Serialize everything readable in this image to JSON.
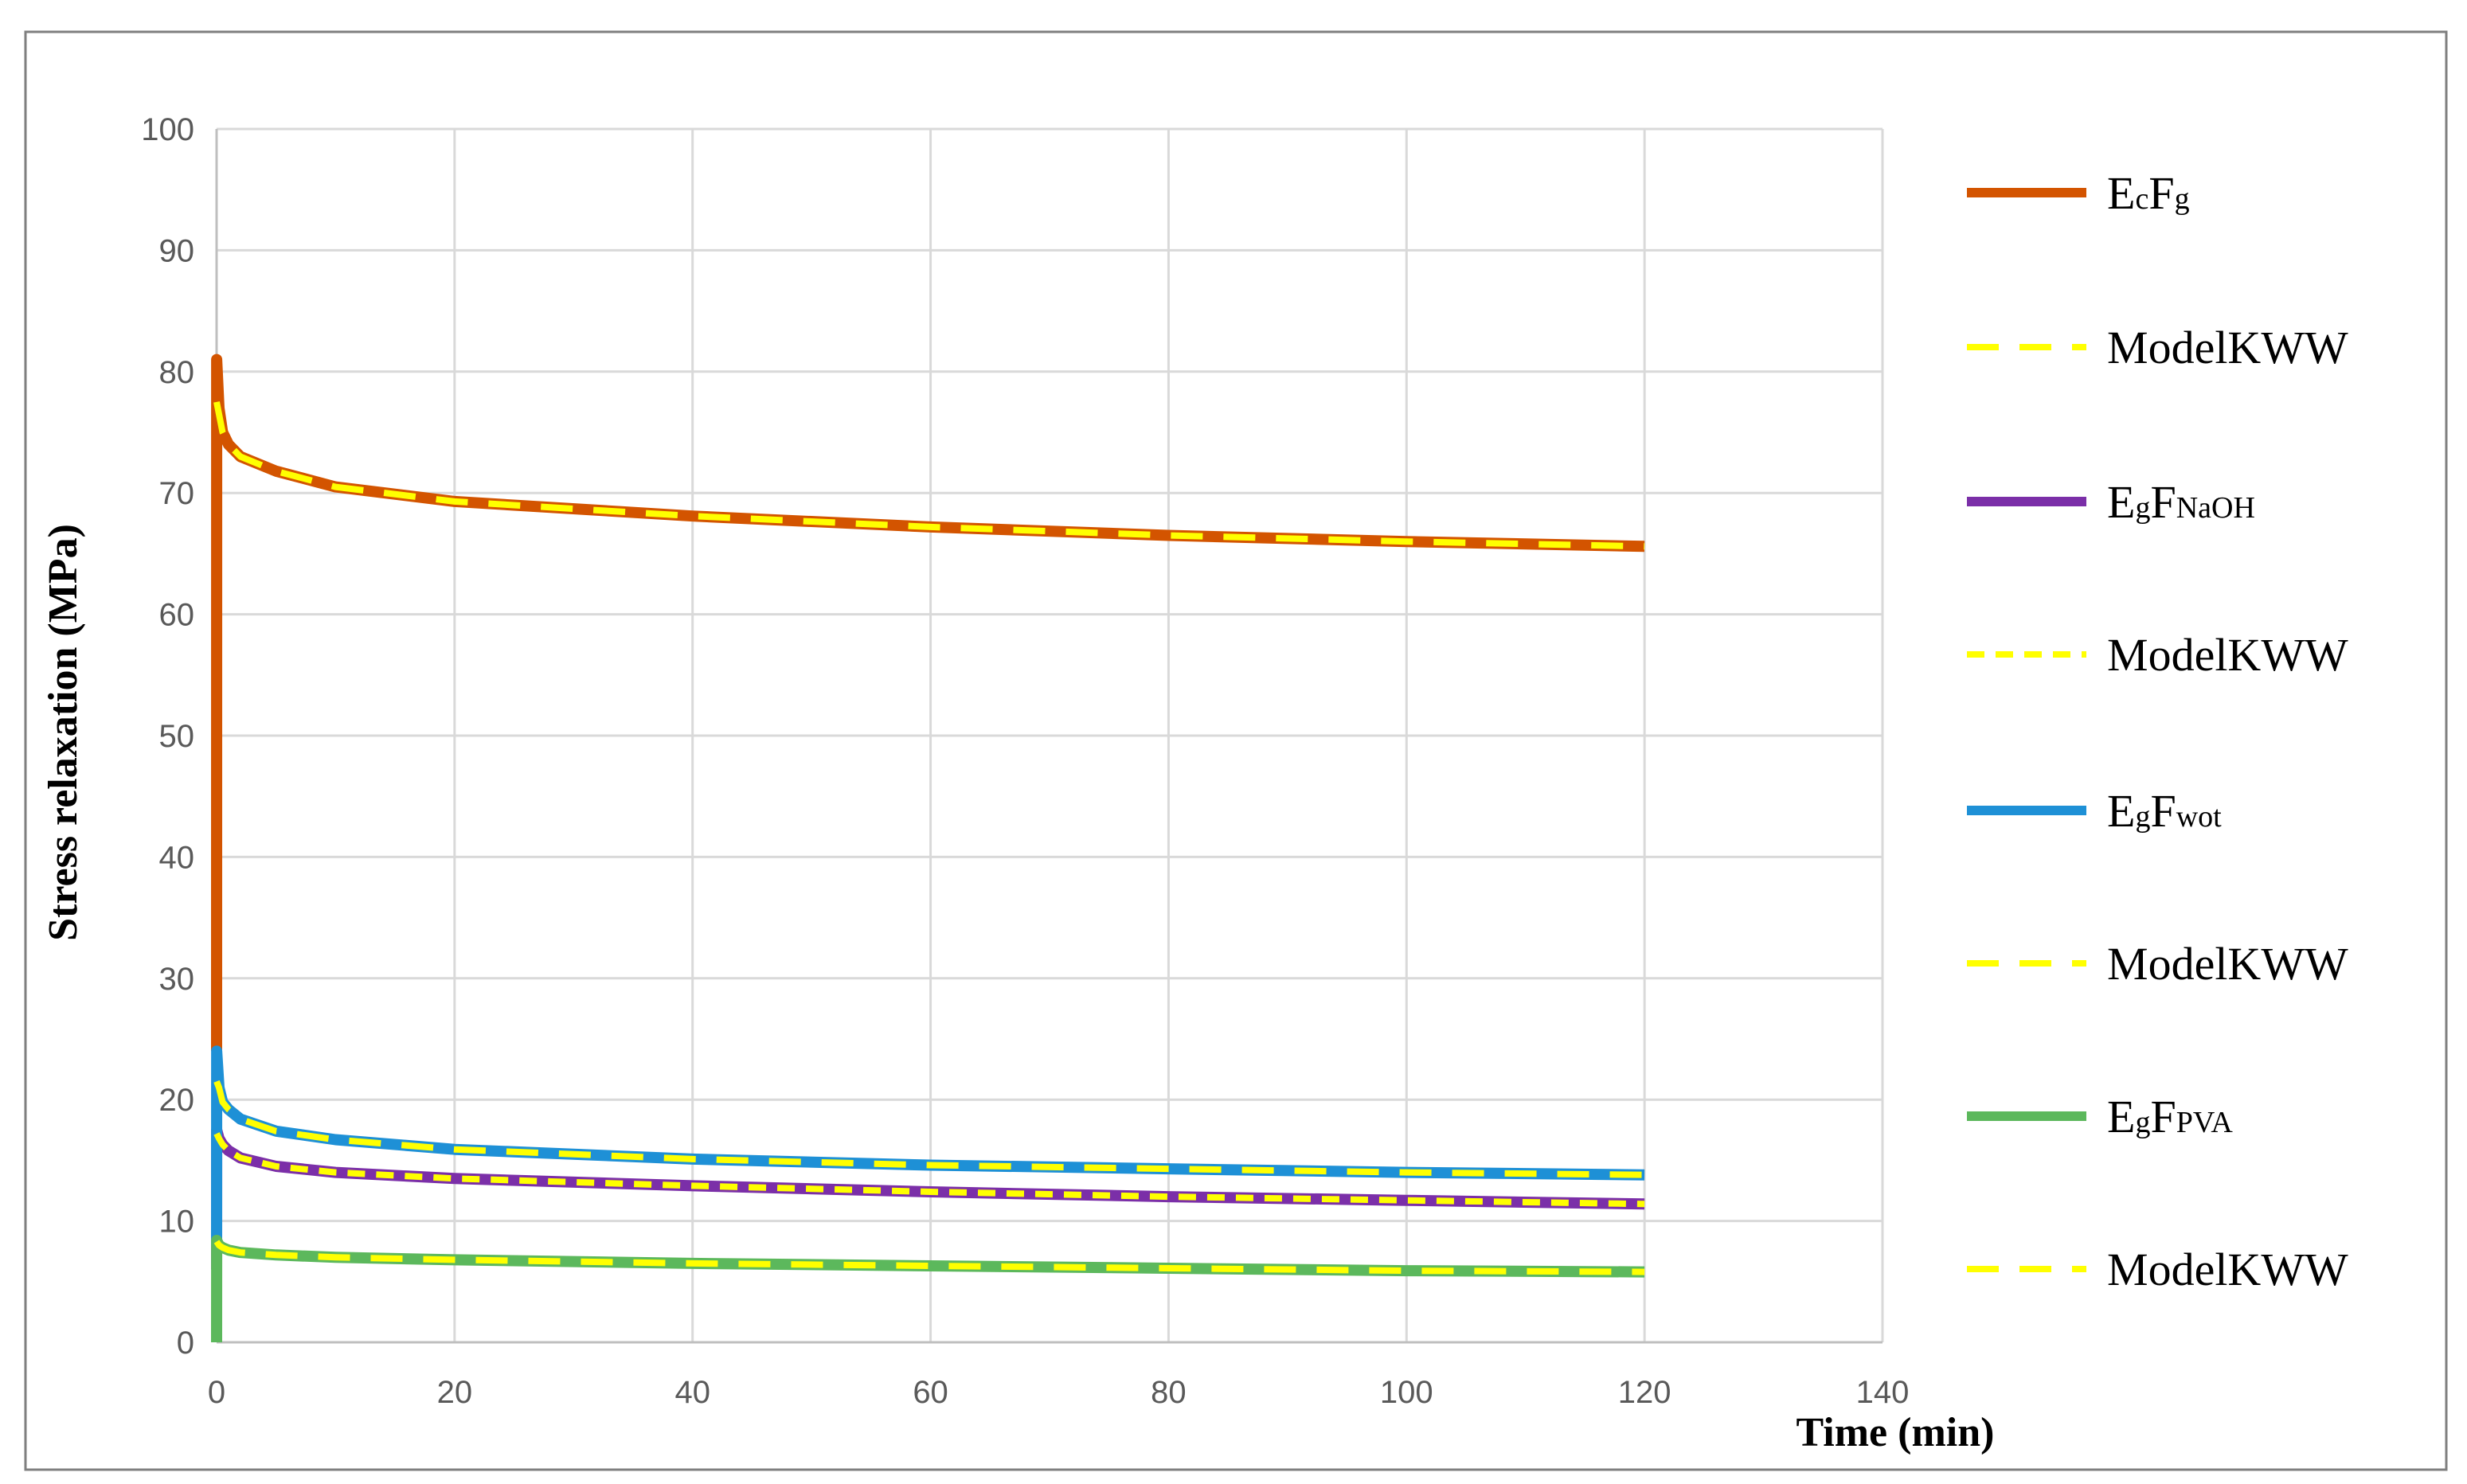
{
  "chart_data": {
    "type": "line",
    "title": "",
    "xlabel": "Time (min)",
    "ylabel": "Stress relaxation (MPa)",
    "xlim": [
      0,
      140
    ],
    "ylim": [
      0,
      100
    ],
    "xticks": [
      0,
      20,
      40,
      60,
      80,
      100,
      120,
      140
    ],
    "yticks": [
      0,
      10,
      20,
      30,
      40,
      50,
      60,
      70,
      80,
      90,
      100
    ],
    "grid": true,
    "legend_position": "right",
    "series": [
      {
        "name": "EcFg",
        "name_main": [
          "E",
          "F"
        ],
        "name_sub": [
          "c",
          "g"
        ],
        "style": "solid",
        "color": "#D35400",
        "x": [
          0,
          0.01,
          0.2,
          0.5,
          1,
          2,
          5,
          10,
          20,
          40,
          60,
          80,
          100,
          120
        ],
        "y": [
          24,
          81,
          77,
          75,
          74,
          73,
          71.8,
          70.5,
          69.3,
          68.1,
          67.2,
          66.5,
          66.0,
          65.6
        ]
      },
      {
        "name": "ModelKWW",
        "style": "dashed",
        "color": "#FFFF00",
        "x": [
          0,
          0.2,
          0.5,
          1,
          2,
          5,
          10,
          20,
          40,
          60,
          80,
          100,
          120
        ],
        "y": [
          77.5,
          76.5,
          75,
          74,
          73,
          71.8,
          70.5,
          69.3,
          68.1,
          67.2,
          66.5,
          66.0,
          65.6
        ]
      },
      {
        "name": "EgFNaOH",
        "name_main": [
          "E",
          "F"
        ],
        "name_sub": [
          "g",
          "NaOH"
        ],
        "style": "solid",
        "color": "#7B2FA8",
        "x": [
          0,
          0.01,
          0.2,
          0.5,
          1,
          2,
          5,
          10,
          20,
          40,
          60,
          80,
          100,
          120
        ],
        "y": [
          6,
          17.5,
          16.8,
          16.3,
          15.8,
          15.2,
          14.5,
          14.0,
          13.5,
          12.9,
          12.4,
          12.0,
          11.7,
          11.4
        ]
      },
      {
        "name": "ModelKWW",
        "style": "dotted",
        "color": "#FFFF00",
        "x": [
          0,
          0.2,
          0.5,
          1,
          2,
          5,
          10,
          20,
          40,
          60,
          80,
          100,
          120
        ],
        "y": [
          17.2,
          16.8,
          16.3,
          15.8,
          15.2,
          14.5,
          14.0,
          13.5,
          12.9,
          12.4,
          12.0,
          11.7,
          11.4
        ]
      },
      {
        "name": "EgFwot",
        "name_main": [
          "E",
          "F"
        ],
        "name_sub": [
          "g",
          "wot"
        ],
        "style": "solid",
        "color": "#1E90D6",
        "x": [
          0,
          0.01,
          0.2,
          0.5,
          1,
          2,
          5,
          10,
          20,
          40,
          60,
          80,
          100,
          120
        ],
        "y": [
          8,
          24,
          21,
          19.8,
          19.2,
          18.4,
          17.4,
          16.7,
          15.9,
          15.1,
          14.6,
          14.3,
          14.0,
          13.8
        ]
      },
      {
        "name": "ModelKWW",
        "style": "dashed",
        "color": "#FFFF00",
        "x": [
          0,
          0.2,
          0.5,
          1,
          2,
          5,
          10,
          20,
          40,
          60,
          80,
          100,
          120
        ],
        "y": [
          21.5,
          21,
          19.8,
          19.2,
          18.4,
          17.4,
          16.7,
          15.9,
          15.1,
          14.6,
          14.3,
          14.0,
          13.8
        ]
      },
      {
        "name": "EgFPVA",
        "name_main": [
          "E",
          "F"
        ],
        "name_sub": [
          "g",
          "PVA"
        ],
        "style": "solid",
        "color": "#5CB85C",
        "x": [
          0,
          0.01,
          0.2,
          0.5,
          1,
          2,
          5,
          10,
          20,
          40,
          60,
          80,
          100,
          120
        ],
        "y": [
          0,
          8.4,
          8.0,
          7.8,
          7.6,
          7.4,
          7.2,
          7.0,
          6.8,
          6.5,
          6.3,
          6.1,
          5.9,
          5.8
        ]
      },
      {
        "name": "ModelKWW",
        "style": "dashed",
        "color": "#FFFF00",
        "x": [
          0,
          0.2,
          0.5,
          1,
          2,
          5,
          10,
          20,
          40,
          60,
          80,
          100,
          120
        ],
        "y": [
          8.3,
          8.0,
          7.8,
          7.6,
          7.4,
          7.2,
          7.0,
          6.8,
          6.5,
          6.3,
          6.1,
          5.9,
          5.8
        ]
      }
    ]
  }
}
